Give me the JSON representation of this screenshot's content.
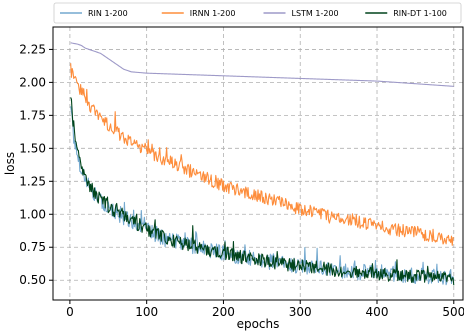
{
  "chart_data": {
    "type": "line",
    "title": "",
    "xlabel": "epochs",
    "ylabel": "loss",
    "xlim": [
      -22,
      512
    ],
    "ylim": [
      0.35,
      2.42
    ],
    "grid": true,
    "legend_placement": "top",
    "x_ticks": [
      {
        "value": 0,
        "label": "0"
      },
      {
        "value": 100,
        "label": "100"
      },
      {
        "value": 200,
        "label": "200"
      },
      {
        "value": 300,
        "label": "300"
      },
      {
        "value": 400,
        "label": "400"
      },
      {
        "value": 500,
        "label": "500"
      }
    ],
    "y_ticks": [
      {
        "value": 0.5,
        "label": "0.50"
      },
      {
        "value": 0.75,
        "label": "0.75"
      },
      {
        "value": 1.0,
        "label": "1.00"
      },
      {
        "value": 1.25,
        "label": "1.25"
      },
      {
        "value": 1.5,
        "label": "1.50"
      },
      {
        "value": 1.75,
        "label": "1.75"
      },
      {
        "value": 2.0,
        "label": "2.00"
      },
      {
        "value": 2.25,
        "label": "2.25"
      }
    ],
    "series": [
      {
        "name": "RIN 1-200",
        "color": "#74a9cf",
        "x": [
          1,
          5,
          10,
          15,
          20,
          25,
          30,
          40,
          50,
          60,
          70,
          80,
          90,
          100,
          120,
          140,
          160,
          180,
          200,
          220,
          240,
          260,
          280,
          300,
          320,
          340,
          360,
          380,
          400,
          420,
          440,
          460,
          480,
          500
        ],
        "y": [
          1.85,
          1.58,
          1.45,
          1.34,
          1.28,
          1.22,
          1.16,
          1.1,
          1.05,
          1.01,
          0.98,
          0.95,
          0.92,
          0.88,
          0.82,
          0.79,
          0.76,
          0.73,
          0.71,
          0.68,
          0.66,
          0.64,
          0.62,
          0.61,
          0.6,
          0.59,
          0.57,
          0.56,
          0.56,
          0.55,
          0.54,
          0.53,
          0.53,
          0.52
        ]
      },
      {
        "name": "IRNN 1-200",
        "color": "#fd8d3c",
        "x": [
          1,
          3,
          10,
          20,
          30,
          40,
          50,
          60,
          80,
          100,
          120,
          140,
          160,
          180,
          200,
          220,
          240,
          260,
          280,
          300,
          320,
          340,
          360,
          380,
          400,
          420,
          440,
          460,
          480,
          500
        ],
        "y": [
          2.1,
          2.07,
          1.98,
          1.87,
          1.79,
          1.73,
          1.68,
          1.63,
          1.55,
          1.48,
          1.42,
          1.37,
          1.32,
          1.27,
          1.22,
          1.18,
          1.15,
          1.11,
          1.08,
          1.04,
          1.01,
          0.98,
          0.96,
          0.94,
          0.91,
          0.89,
          0.87,
          0.85,
          0.83,
          0.81
        ]
      },
      {
        "name": "LSTM 1-200",
        "color": "#9e9ac8",
        "x": [
          1,
          10,
          15,
          20,
          30,
          40,
          50,
          60,
          70,
          80,
          100,
          150,
          200,
          250,
          300,
          350,
          400,
          450,
          500
        ],
        "y": [
          2.3,
          2.29,
          2.28,
          2.26,
          2.24,
          2.22,
          2.18,
          2.14,
          2.1,
          2.08,
          2.07,
          2.06,
          2.05,
          2.04,
          2.03,
          2.02,
          2.01,
          1.99,
          1.97
        ]
      },
      {
        "name": "RIN-DT 1-100",
        "color": "#00441b",
        "x": [
          1,
          5,
          10,
          15,
          20,
          25,
          30,
          40,
          50,
          60,
          70,
          80,
          90,
          100,
          120,
          140,
          160,
          180,
          200,
          220,
          240,
          260,
          280,
          300,
          320,
          340,
          360,
          380,
          400,
          420,
          440,
          460,
          480,
          500
        ],
        "y": [
          1.9,
          1.62,
          1.47,
          1.36,
          1.29,
          1.23,
          1.17,
          1.11,
          1.06,
          1.02,
          0.99,
          0.95,
          0.92,
          0.89,
          0.83,
          0.79,
          0.76,
          0.73,
          0.71,
          0.68,
          0.66,
          0.64,
          0.62,
          0.61,
          0.6,
          0.58,
          0.57,
          0.56,
          0.55,
          0.54,
          0.53,
          0.53,
          0.52,
          0.51
        ]
      }
    ]
  }
}
